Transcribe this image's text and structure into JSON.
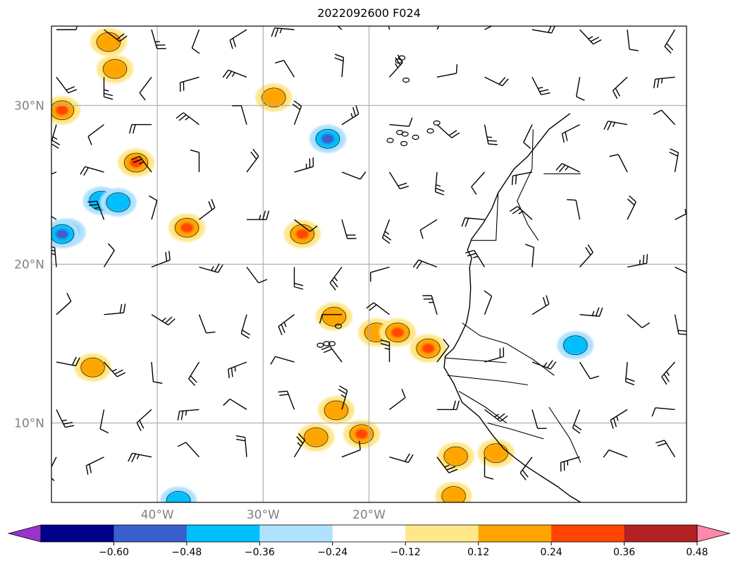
{
  "title": "2022092600 F024",
  "map": {
    "lon_range": [
      -50,
      10
    ],
    "lat_range": [
      5,
      35
    ],
    "lat_gridlines": [
      {
        "value": 30,
        "label": "30°N"
      },
      {
        "value": 20,
        "label": "20°N"
      },
      {
        "value": 10,
        "label": "10°N"
      }
    ],
    "lon_gridlines": [
      {
        "value": -40,
        "label": "40°W"
      },
      {
        "value": -30,
        "label": "30°W"
      },
      {
        "value": -20,
        "label": "20°W"
      }
    ],
    "gridline_color": "#b0b0b0",
    "coastline_color": "#000000"
  },
  "colorbar": {
    "colors": [
      "#9933cc",
      "#00008b",
      "#3a5fcd",
      "#00bfff",
      "#b0e2ff",
      "#ffffff",
      "#ffe78a",
      "#ffa500",
      "#ff4500",
      "#b22222",
      "#ff88aa"
    ],
    "tick_labels": [
      "−0.60",
      "−0.48",
      "−0.36",
      "−0.24",
      "−0.12",
      "0.12",
      "0.24",
      "0.36",
      "0.48",
      "0.60"
    ],
    "extend": "both"
  },
  "field_blobs": [
    {
      "lon": -44.6,
      "lat": 34.0,
      "level": 0.24
    },
    {
      "lon": -44.0,
      "lat": 32.3,
      "level": 0.24
    },
    {
      "lon": -49.0,
      "lat": 29.7,
      "level": 0.36
    },
    {
      "lon": -42.0,
      "lat": 26.4,
      "level": 0.36
    },
    {
      "lon": -48.5,
      "lat": 22.0,
      "level": -0.36
    },
    {
      "lon": -49.0,
      "lat": 21.9,
      "level": -0.48
    },
    {
      "lon": -45.3,
      "lat": 24.0,
      "level": -0.24
    },
    {
      "lon": -43.7,
      "lat": 23.9,
      "level": -0.24
    },
    {
      "lon": -37.2,
      "lat": 22.3,
      "level": 0.36
    },
    {
      "lon": -29.0,
      "lat": 30.5,
      "level": 0.24
    },
    {
      "lon": -23.9,
      "lat": 27.9,
      "level": -0.36
    },
    {
      "lon": -26.3,
      "lat": 21.9,
      "level": 0.36
    },
    {
      "lon": -46.1,
      "lat": 13.5,
      "level": 0.24
    },
    {
      "lon": -23.3,
      "lat": 16.7,
      "level": 0.24
    },
    {
      "lon": -19.3,
      "lat": 15.7,
      "level": 0.24
    },
    {
      "lon": -17.3,
      "lat": 15.7,
      "level": 0.36
    },
    {
      "lon": -14.4,
      "lat": 14.7,
      "level": 0.36
    },
    {
      "lon": -23.1,
      "lat": 10.8,
      "level": 0.24
    },
    {
      "lon": -25.0,
      "lat": 9.1,
      "level": 0.24
    },
    {
      "lon": -20.7,
      "lat": 9.3,
      "level": 0.36
    },
    {
      "lon": -11.8,
      "lat": 7.9,
      "level": 0.24
    },
    {
      "lon": -8.0,
      "lat": 8.1,
      "level": 0.24
    },
    {
      "lon": -12.0,
      "lat": 5.4,
      "level": 0.24
    },
    {
      "lon": -0.5,
      "lat": 14.9,
      "level": -0.24
    },
    {
      "lon": -38.0,
      "lat": 5.1,
      "level": -0.24
    }
  ],
  "coastline_lonlat": [
    [
      -1.0,
      29.5
    ],
    [
      -3.0,
      28.5
    ],
    [
      -5.0,
      26.8
    ],
    [
      -6.3,
      26.0
    ],
    [
      -7.8,
      24.5
    ],
    [
      -8.4,
      23.5
    ],
    [
      -9.2,
      22.6
    ],
    [
      -10.3,
      21.6
    ],
    [
      -10.7,
      20.9
    ],
    [
      -10.3,
      20.4
    ],
    [
      -10.5,
      19.8
    ],
    [
      -10.4,
      18.5
    ],
    [
      -10.5,
      17.3
    ],
    [
      -10.8,
      16.3
    ],
    [
      -11.5,
      15.3
    ],
    [
      -12.0,
      14.7
    ],
    [
      -12.8,
      14.2
    ],
    [
      -12.9,
      13.5
    ],
    [
      -12.0,
      12.5
    ],
    [
      -11.2,
      11.3
    ],
    [
      -9.6,
      10.4
    ],
    [
      -8.4,
      9.3
    ],
    [
      -7.3,
      8.4
    ],
    [
      -6.2,
      7.8
    ],
    [
      -5.2,
      7.3
    ],
    [
      -3.6,
      6.6
    ],
    [
      -2.2,
      6.0
    ],
    [
      -1.0,
      5.4
    ],
    [
      0.0,
      5.0
    ]
  ],
  "borders_lonlat": [
    [
      [
        -3.5,
        25.7
      ],
      [
        -1.6,
        25.7
      ],
      [
        0.0,
        25.7
      ]
    ],
    [
      [
        -7.8,
        24.5
      ],
      [
        -8.0,
        21.5
      ],
      [
        -10.3,
        21.5
      ]
    ],
    [
      [
        -4.5,
        28.5
      ],
      [
        -4.6,
        26.0
      ],
      [
        -6.0,
        24.0
      ],
      [
        -5.0,
        22.5
      ],
      [
        -4.0,
        21.5
      ]
    ],
    [
      [
        -11.2,
        16.3
      ],
      [
        -9.5,
        15.5
      ],
      [
        -7.0,
        15.0
      ],
      [
        -4.5,
        14.0
      ],
      [
        -2.5,
        13.0
      ]
    ],
    [
      [
        -12.8,
        14.1
      ],
      [
        -7.0,
        13.8
      ]
    ],
    [
      [
        -12.6,
        13.0
      ],
      [
        -7.0,
        12.6
      ],
      [
        -5.0,
        12.4
      ]
    ],
    [
      [
        -11.5,
        12.0
      ],
      [
        -9.0,
        11.0
      ],
      [
        -7.0,
        10.0
      ]
    ],
    [
      [
        -8.8,
        10.0
      ],
      [
        -6.5,
        9.6
      ],
      [
        -3.5,
        9.0
      ]
    ],
    [
      [
        -3.0,
        11.0
      ],
      [
        -1.0,
        9.0
      ],
      [
        0.0,
        7.5
      ]
    ]
  ],
  "islands_lonlat": [
    [
      -17.1,
      28.3
    ],
    [
      -16.6,
      28.2
    ],
    [
      -15.6,
      28.0
    ],
    [
      -14.2,
      28.4
    ],
    [
      -13.6,
      28.9
    ],
    [
      -18.0,
      27.8
    ],
    [
      -16.7,
      27.6
    ],
    [
      -17.2,
      32.8
    ],
    [
      -16.9,
      33.0
    ],
    [
      -16.5,
      31.6
    ],
    [
      -24.6,
      14.9
    ],
    [
      -24.0,
      15.0
    ],
    [
      -23.5,
      15.0
    ],
    [
      -22.9,
      16.1
    ]
  ]
}
